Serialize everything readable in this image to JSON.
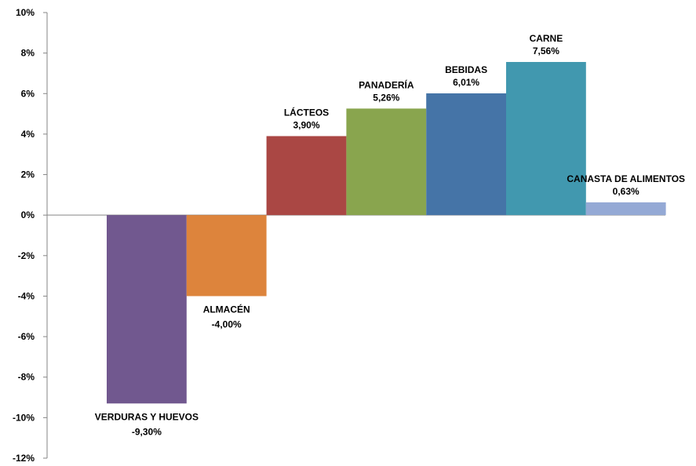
{
  "chart_data": {
    "type": "bar",
    "categories": [
      "VERDURAS Y HUEVOS",
      "ALMACÉN",
      "LÁCTEOS",
      "PANADERÍA",
      "BEBIDAS",
      "CARNE",
      "CANASTA DE ALIMENTOS"
    ],
    "values": [
      -9.3,
      -4.0,
      3.9,
      5.26,
      6.01,
      7.56,
      0.63
    ],
    "value_labels": [
      "-9,30%",
      "-4,00%",
      "3,90%",
      "5,26%",
      "6,01%",
      "7,56%",
      "0,63%"
    ],
    "colors": [
      "#71588f",
      "#dd843c",
      "#aa4744",
      "#89a54e",
      "#4574a7",
      "#4198af",
      "#94a9d5"
    ],
    "ylim": [
      -12,
      10
    ],
    "yticks": [
      "10%",
      "8%",
      "6%",
      "4%",
      "2%",
      "0%",
      "-2%",
      "-4%",
      "-6%",
      "-8%",
      "-10%",
      "-12%"
    ],
    "ytick_values": [
      10,
      8,
      6,
      4,
      2,
      0,
      -2,
      -4,
      -6,
      -8,
      -10,
      -12
    ],
    "grid": false,
    "legend": "none"
  }
}
